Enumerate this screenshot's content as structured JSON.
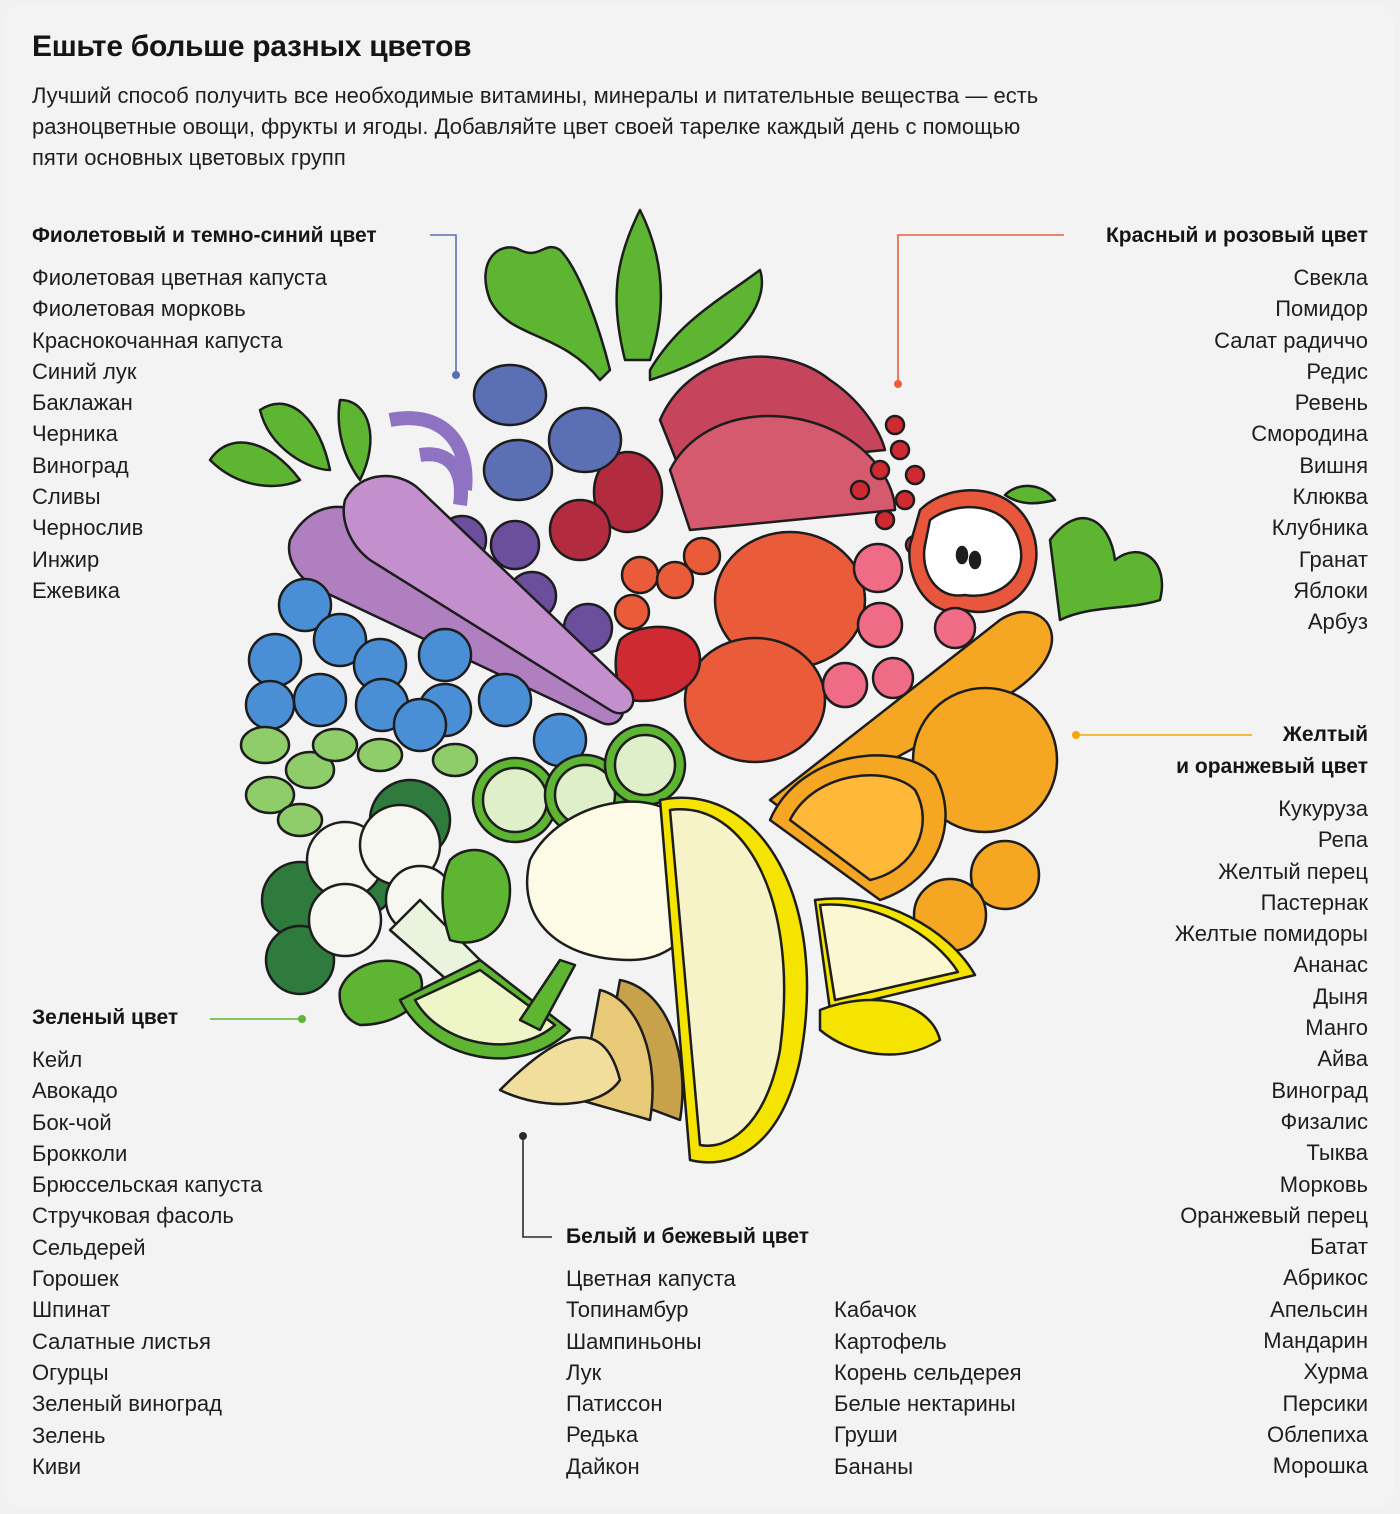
{
  "header": {
    "title": "Ешьте больше разных цветов",
    "subtitle": "Лучший способ получить все необходимые витамины, минералы и питательные вещества — есть разноцветные овощи, фрукты и ягоды. Добавляйте цвет своей тарелке каждый день с помощью пяти основных цветовых групп"
  },
  "groups": {
    "purple": {
      "heading": "Фиолетовый и темно-синий цвет",
      "items": [
        "Фиолетовая цветная капуста",
        "Фиолетовая морковь",
        "Краснокочанная капуста",
        "Синий лук",
        "Баклажан",
        "Черника",
        "Виноград",
        "Сливы",
        "Чернослив",
        "Инжир",
        "Ежевика"
      ]
    },
    "red": {
      "heading": "Красный и розовый цвет",
      "items": [
        "Свекла",
        "Помидор",
        "Салат радиччо",
        "Редис",
        "Ревень",
        "Смородина",
        "Вишня",
        "Клюква",
        "Клубника",
        "Гранат",
        "Яблоки",
        "Арбуз"
      ]
    },
    "yellow": {
      "heading_line1": "Желтый",
      "heading_line2": "и оранжевый цвет",
      "items": [
        "Кукуруза",
        "Репа",
        "Желтый перец",
        "Пастернак",
        "Желтые помидоры",
        "Ананас",
        "Дыня",
        "Манго",
        "Айва",
        "Виноград",
        "Физалис",
        "Тыква",
        "Морковь",
        "Оранжевый перец",
        "Батат",
        "Абрикос",
        "Апельсин",
        "Мандарин",
        "Хурма",
        "Персики",
        "Облепиха",
        "Морошка"
      ]
    },
    "green": {
      "heading": "Зеленый цвет",
      "items": [
        "Кейл",
        "Авокадо",
        "Бок-чой",
        "Брокколи",
        "Брюссельская капуста",
        "Стручковая фасоль",
        "Сельдерей",
        "Горошек",
        "Шпинат",
        "Салатные листья",
        "Огурцы",
        "Зеленый виноград",
        "Зелень",
        "Киви"
      ]
    },
    "white": {
      "heading": "Белый и бежевый цвет",
      "items_col1": [
        "Цветная капуста",
        "Топинамбур",
        "Шампиньоны",
        "Лук",
        "Патиссон",
        "Редька",
        "Дайкон"
      ],
      "items_col2": [
        "Кабачок",
        "Картофель",
        "Корень сельдерея",
        "Белые нектарины",
        "Груши",
        "Бананы"
      ]
    }
  },
  "colors": {
    "purple_group": "#5b6fb5",
    "red_group": "#e8603c",
    "yellow_group": "#f5a800",
    "green_group": "#5db531",
    "white_group": "#2a2a2a"
  }
}
